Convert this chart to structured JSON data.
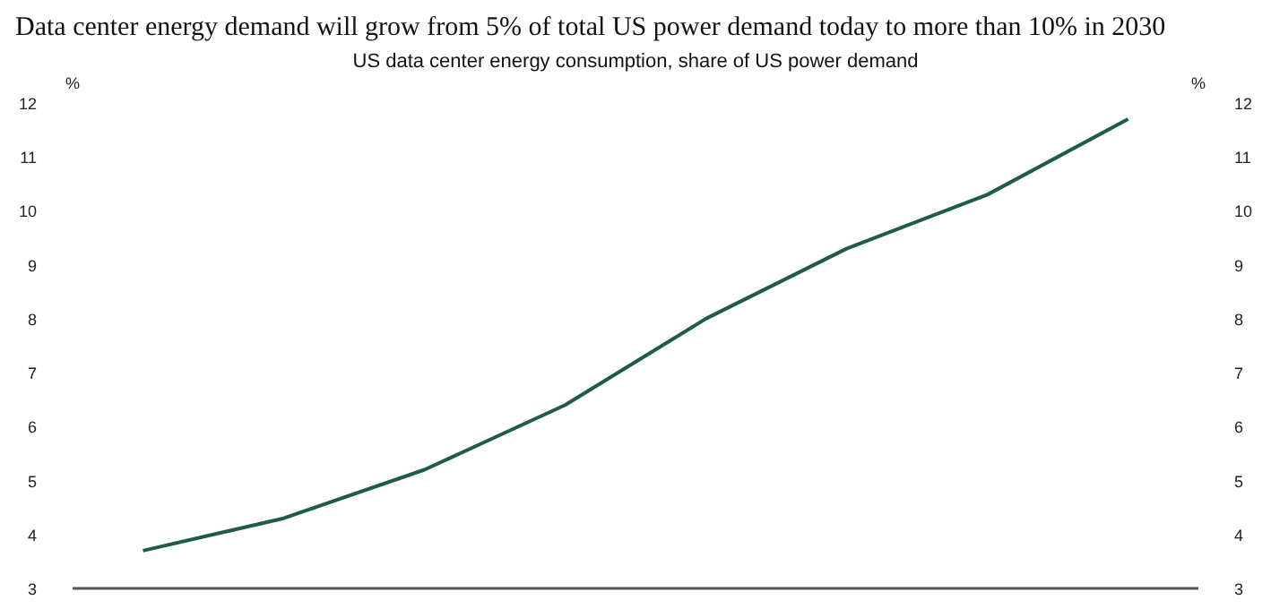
{
  "chart_data": {
    "type": "line",
    "title": "Data center energy demand will grow from 5% of total US power demand today to more than 10% in 2030",
    "subtitle": "US data center energy consumption, share of US power demand",
    "ylabel": "%",
    "y2label": "%",
    "categories": [
      null,
      null,
      null,
      null,
      null,
      null,
      null,
      null
    ],
    "series": [
      {
        "color": "#1f5c46",
        "values": [
          3.7,
          4.3,
          5.2,
          6.4,
          8.0,
          9.3,
          10.3,
          11.7
        ]
      }
    ],
    "ylim": [
      3,
      12
    ],
    "yticks": [
      3,
      4,
      5,
      6,
      7,
      8,
      9,
      10,
      11,
      12
    ],
    "y2lim": [
      3,
      12
    ],
    "y2ticks": [
      3,
      4,
      5,
      6,
      7,
      8,
      9,
      10,
      11,
      12
    ],
    "grid": false,
    "marker": "none",
    "line_style": "solid"
  }
}
